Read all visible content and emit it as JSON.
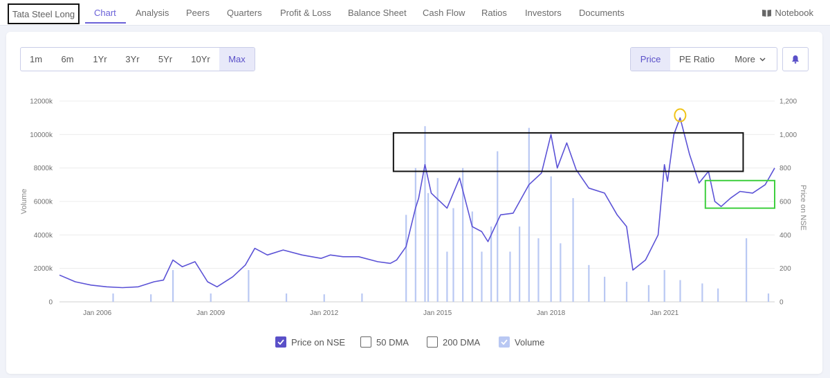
{
  "topnav": {
    "company": "Tata Steel Long",
    "tabs": [
      "Chart",
      "Analysis",
      "Peers",
      "Quarters",
      "Profit & Loss",
      "Balance Sheet",
      "Cash Flow",
      "Ratios",
      "Investors",
      "Documents"
    ],
    "active_tab": "Chart",
    "notebook_label": "Notebook",
    "notebook_icon": "book-icon"
  },
  "range_buttons": [
    "1m",
    "6m",
    "1Yr",
    "3Yr",
    "5Yr",
    "10Yr",
    "Max"
  ],
  "range_active": "Max",
  "metric_buttons": {
    "price": "Price",
    "pe": "PE Ratio",
    "more": "More"
  },
  "metric_active": "Price",
  "alert_icon": "bell-icon",
  "legend": {
    "price": {
      "label": "Price on NSE",
      "checked": true
    },
    "dma50": {
      "label": "50 DMA",
      "checked": false
    },
    "dma200": {
      "label": "200 DMA",
      "checked": false
    },
    "volume": {
      "label": "Volume",
      "checked": true
    }
  },
  "colors": {
    "accent": "#5a50c8",
    "price_line": "#5b52d6",
    "volume_bars": "#b9c8f3",
    "annotation_box": "#111111",
    "annotation_green": "#3ecf3e",
    "annotation_circle": "#f0c419"
  },
  "chart_data": {
    "type": "line",
    "xlabel": "",
    "ylabel_left": "Volume",
    "ylabel_right": "Price on NSE",
    "x_range": [
      "2005-01",
      "2023-12"
    ],
    "x_ticks": [
      "Jan 2006",
      "Jan 2009",
      "Jan 2012",
      "Jan 2015",
      "Jan 2018",
      "Jan 2021"
    ],
    "y_left_ticks": [
      "0",
      "2000k",
      "4000k",
      "6000k",
      "8000k",
      "10000k",
      "12000k"
    ],
    "y_left_range": [
      0,
      12000
    ],
    "y_right_ticks": [
      "0",
      "200",
      "400",
      "600",
      "800",
      "1,000",
      "1,200"
    ],
    "y_right_range": [
      0,
      1200
    ],
    "grid": true,
    "series": [
      {
        "name": "Price on NSE",
        "axis": "right",
        "points": [
          [
            "2005-01",
            160
          ],
          [
            "2005-06",
            120
          ],
          [
            "2005-11",
            100
          ],
          [
            "2006-04",
            90
          ],
          [
            "2006-09",
            85
          ],
          [
            "2007-02",
            90
          ],
          [
            "2007-07",
            120
          ],
          [
            "2007-10",
            130
          ],
          [
            "2008-01",
            250
          ],
          [
            "2008-04",
            210
          ],
          [
            "2008-08",
            240
          ],
          [
            "2008-12",
            120
          ],
          [
            "2009-03",
            90
          ],
          [
            "2009-08",
            150
          ],
          [
            "2009-12",
            220
          ],
          [
            "2010-03",
            320
          ],
          [
            "2010-07",
            280
          ],
          [
            "2010-12",
            310
          ],
          [
            "2011-06",
            280
          ],
          [
            "2011-12",
            260
          ],
          [
            "2012-03",
            280
          ],
          [
            "2012-07",
            270
          ],
          [
            "2012-12",
            270
          ],
          [
            "2013-06",
            240
          ],
          [
            "2013-10",
            230
          ],
          [
            "2013-12",
            250
          ],
          [
            "2014-03",
            330
          ],
          [
            "2014-06",
            560
          ],
          [
            "2014-07",
            620
          ],
          [
            "2014-09",
            820
          ],
          [
            "2014-11",
            650
          ],
          [
            "2015-04",
            560
          ],
          [
            "2015-08",
            740
          ],
          [
            "2015-12",
            450
          ],
          [
            "2016-03",
            420
          ],
          [
            "2016-05",
            360
          ],
          [
            "2016-09",
            520
          ],
          [
            "2017-01",
            530
          ],
          [
            "2017-06",
            700
          ],
          [
            "2017-10",
            770
          ],
          [
            "2018-01",
            1000
          ],
          [
            "2018-03",
            800
          ],
          [
            "2018-06",
            950
          ],
          [
            "2018-09",
            790
          ],
          [
            "2019-01",
            680
          ],
          [
            "2019-06",
            650
          ],
          [
            "2019-10",
            520
          ],
          [
            "2020-01",
            450
          ],
          [
            "2020-03",
            190
          ],
          [
            "2020-07",
            250
          ],
          [
            "2020-11",
            400
          ],
          [
            "2021-01",
            820
          ],
          [
            "2021-02",
            720
          ],
          [
            "2021-04",
            1000
          ],
          [
            "2021-06",
            1100
          ],
          [
            "2021-09",
            880
          ],
          [
            "2021-12",
            710
          ],
          [
            "2022-03",
            780
          ],
          [
            "2022-05",
            600
          ],
          [
            "2022-07",
            570
          ],
          [
            "2022-10",
            620
          ],
          [
            "2023-01",
            660
          ],
          [
            "2023-05",
            650
          ],
          [
            "2023-09",
            700
          ],
          [
            "2023-12",
            800
          ]
        ]
      },
      {
        "name": "Volume",
        "axis": "left",
        "type": "bar",
        "points": [
          [
            "2006-06",
            500
          ],
          [
            "2007-06",
            450
          ],
          [
            "2008-01",
            1900
          ],
          [
            "2009-01",
            500
          ],
          [
            "2010-01",
            1900
          ],
          [
            "2011-01",
            500
          ],
          [
            "2012-01",
            450
          ],
          [
            "2013-01",
            500
          ],
          [
            "2014-03",
            5200
          ],
          [
            "2014-06",
            8000
          ],
          [
            "2014-09",
            10500
          ],
          [
            "2014-10",
            6500
          ],
          [
            "2015-01",
            7400
          ],
          [
            "2015-04",
            3000
          ],
          [
            "2015-06",
            5600
          ],
          [
            "2015-09",
            8000
          ],
          [
            "2015-12",
            5400
          ],
          [
            "2016-03",
            3000
          ],
          [
            "2016-06",
            4500
          ],
          [
            "2016-08",
            9000
          ],
          [
            "2016-12",
            3000
          ],
          [
            "2017-03",
            4500
          ],
          [
            "2017-06",
            10400
          ],
          [
            "2017-09",
            3800
          ],
          [
            "2018-01",
            7500
          ],
          [
            "2018-04",
            3500
          ],
          [
            "2018-08",
            6200
          ],
          [
            "2019-01",
            2200
          ],
          [
            "2019-06",
            1500
          ],
          [
            "2020-01",
            1200
          ],
          [
            "2020-08",
            1000
          ],
          [
            "2021-01",
            1900
          ],
          [
            "2021-06",
            1300
          ],
          [
            "2022-01",
            1100
          ],
          [
            "2022-06",
            800
          ],
          [
            "2023-03",
            3800
          ],
          [
            "2023-10",
            500
          ]
        ]
      }
    ],
    "annotations": [
      {
        "shape": "rect",
        "color": "black",
        "x": [
          "2013-11",
          "2023-02"
        ],
        "y": [
          780,
          1010
        ]
      },
      {
        "shape": "rect",
        "color": "green",
        "x": [
          "2022-02",
          "2023-12"
        ],
        "y": [
          560,
          725
        ]
      },
      {
        "shape": "circle",
        "color": "yellow",
        "x": "2021-06",
        "y": 1115
      }
    ]
  }
}
